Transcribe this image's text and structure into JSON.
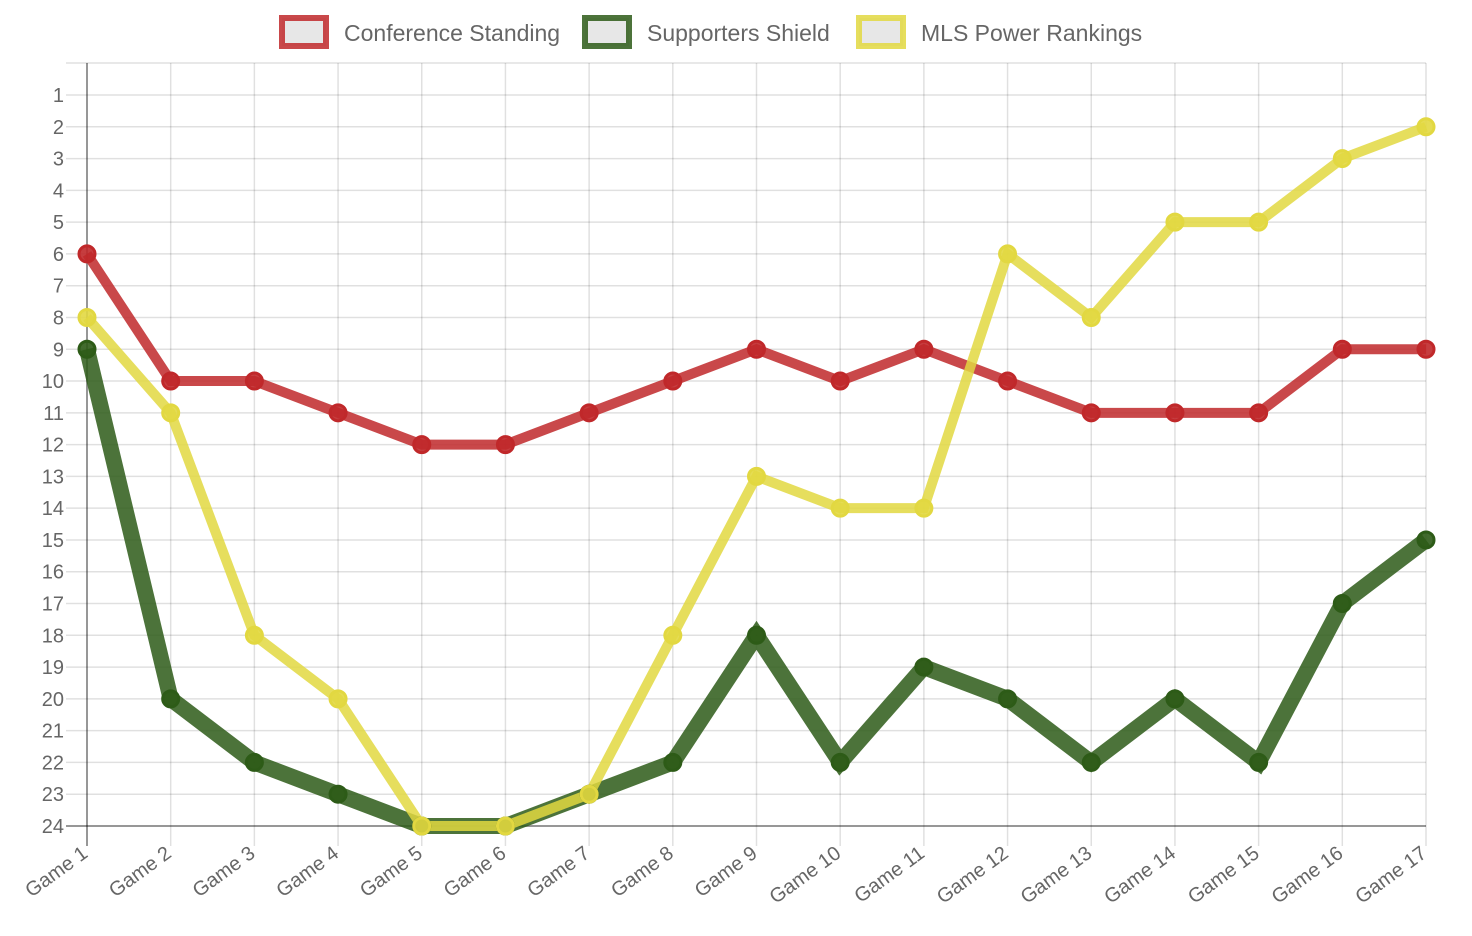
{
  "chart_data": {
    "type": "line",
    "title": "",
    "xlabel": "",
    "ylabel": "",
    "categories": [
      "Game 1",
      "Game 2",
      "Game 3",
      "Game 4",
      "Game 5",
      "Game 6",
      "Game 7",
      "Game 8",
      "Game 9",
      "Game 10",
      "Game 11",
      "Game 12",
      "Game 13",
      "Game 14",
      "Game 15",
      "Game 16",
      "Game 17"
    ],
    "y_ticks": [
      "1",
      "2",
      "3",
      "4",
      "5",
      "6",
      "7",
      "8",
      "9",
      "10",
      "11",
      "12",
      "13",
      "14",
      "15",
      "16",
      "17",
      "18",
      "19",
      "20",
      "21",
      "22",
      "23",
      "24"
    ],
    "ylim": [
      1,
      24
    ],
    "y_reversed": true,
    "grid": true,
    "legend": "top-center",
    "series": [
      {
        "name": "Conference Standing",
        "color": "#c0282a",
        "values": [
          6,
          10,
          10,
          11,
          12,
          12,
          11,
          10,
          9,
          10,
          9,
          10,
          11,
          11,
          11,
          9,
          9
        ]
      },
      {
        "name": "Supporters Shield",
        "color": "#2d5b17",
        "values": [
          9,
          20,
          22,
          23,
          24,
          24,
          23,
          22,
          18,
          22,
          19,
          20,
          22,
          20,
          22,
          17,
          15
        ]
      },
      {
        "name": "MLS Power Rankings",
        "color": "#e2d841",
        "values": [
          8,
          11,
          18,
          20,
          24,
          24,
          23,
          18,
          13,
          14,
          14,
          6,
          8,
          5,
          5,
          3,
          2
        ]
      }
    ]
  }
}
